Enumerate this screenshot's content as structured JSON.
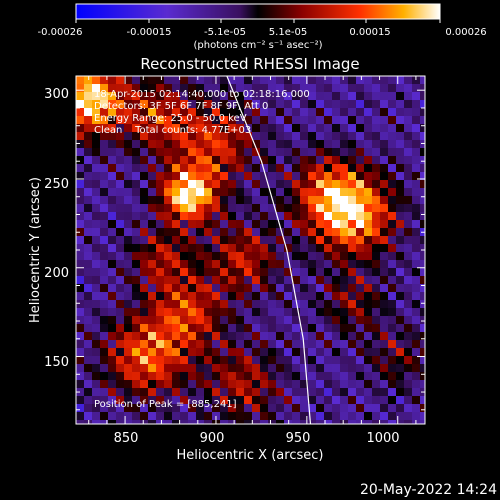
{
  "chart_data": {
    "type": "heatmap",
    "title": "Reconstructed RHESSI Image",
    "xlabel": "Heliocentric X (arcsec)",
    "ylabel": "Heliocentric Y (arcsec)",
    "xlim": [
      823,
      1015
    ],
    "ylim": [
      112,
      308
    ],
    "x_ticks": [
      850,
      900,
      950,
      1000
    ],
    "y_ticks": [
      150,
      200,
      250,
      300
    ],
    "colorbar": {
      "label": "(photons cm⁻² s⁻¹ asec⁻²)",
      "range": [
        -0.00026,
        0.00026
      ],
      "ticks": [
        "-0.00026",
        "-0.00015",
        "-5.1e-05",
        "5.1e-05",
        "0.00015",
        "0.00026"
      ]
    },
    "annotations": [
      "18-Apr-2015 02:14:40.000 to 02:18:16.000",
      "Detectors: 3F 5F 6F 7F 8F 9F, Att 0",
      "Energy Range: 25.0 - 50.0 keV",
      "Clean    Total counts: 4.77E+03"
    ],
    "peak_label": "Position of Peak = [885,241]",
    "limb_arcsec": [
      [
        906,
        308
      ],
      [
        925,
        260
      ],
      [
        939,
        210
      ],
      [
        948,
        160
      ],
      [
        952,
        112
      ]
    ],
    "sources": [
      {
        "x": 830,
        "y": 295,
        "amp": 1.0,
        "sigma": 14
      },
      {
        "x": 885,
        "y": 241,
        "amp": 1.0,
        "sigma": 11
      },
      {
        "x": 900,
        "y": 270,
        "amp": 0.55,
        "sigma": 16
      },
      {
        "x": 868,
        "y": 285,
        "amp": 0.5,
        "sigma": 14
      },
      {
        "x": 975,
        "y": 230,
        "amp": 0.9,
        "sigma": 16
      },
      {
        "x": 960,
        "y": 245,
        "amp": 0.45,
        "sigma": 14
      },
      {
        "x": 862,
        "y": 150,
        "amp": 0.7,
        "sigma": 16
      },
      {
        "x": 885,
        "y": 175,
        "amp": 0.55,
        "sigma": 14
      },
      {
        "x": 915,
        "y": 205,
        "amp": 0.5,
        "sigma": 14
      },
      {
        "x": 915,
        "y": 135,
        "amp": 0.45,
        "sigma": 15
      },
      {
        "x": 870,
        "y": 205,
        "amp": 0.45,
        "sigma": 12
      },
      {
        "x": 975,
        "y": 180,
        "amp": 0.35,
        "sigma": 12
      },
      {
        "x": 1000,
        "y": 150,
        "amp": 0.3,
        "sigma": 12
      }
    ]
  },
  "footer": {
    "date": "20-May-2022 14:24"
  }
}
